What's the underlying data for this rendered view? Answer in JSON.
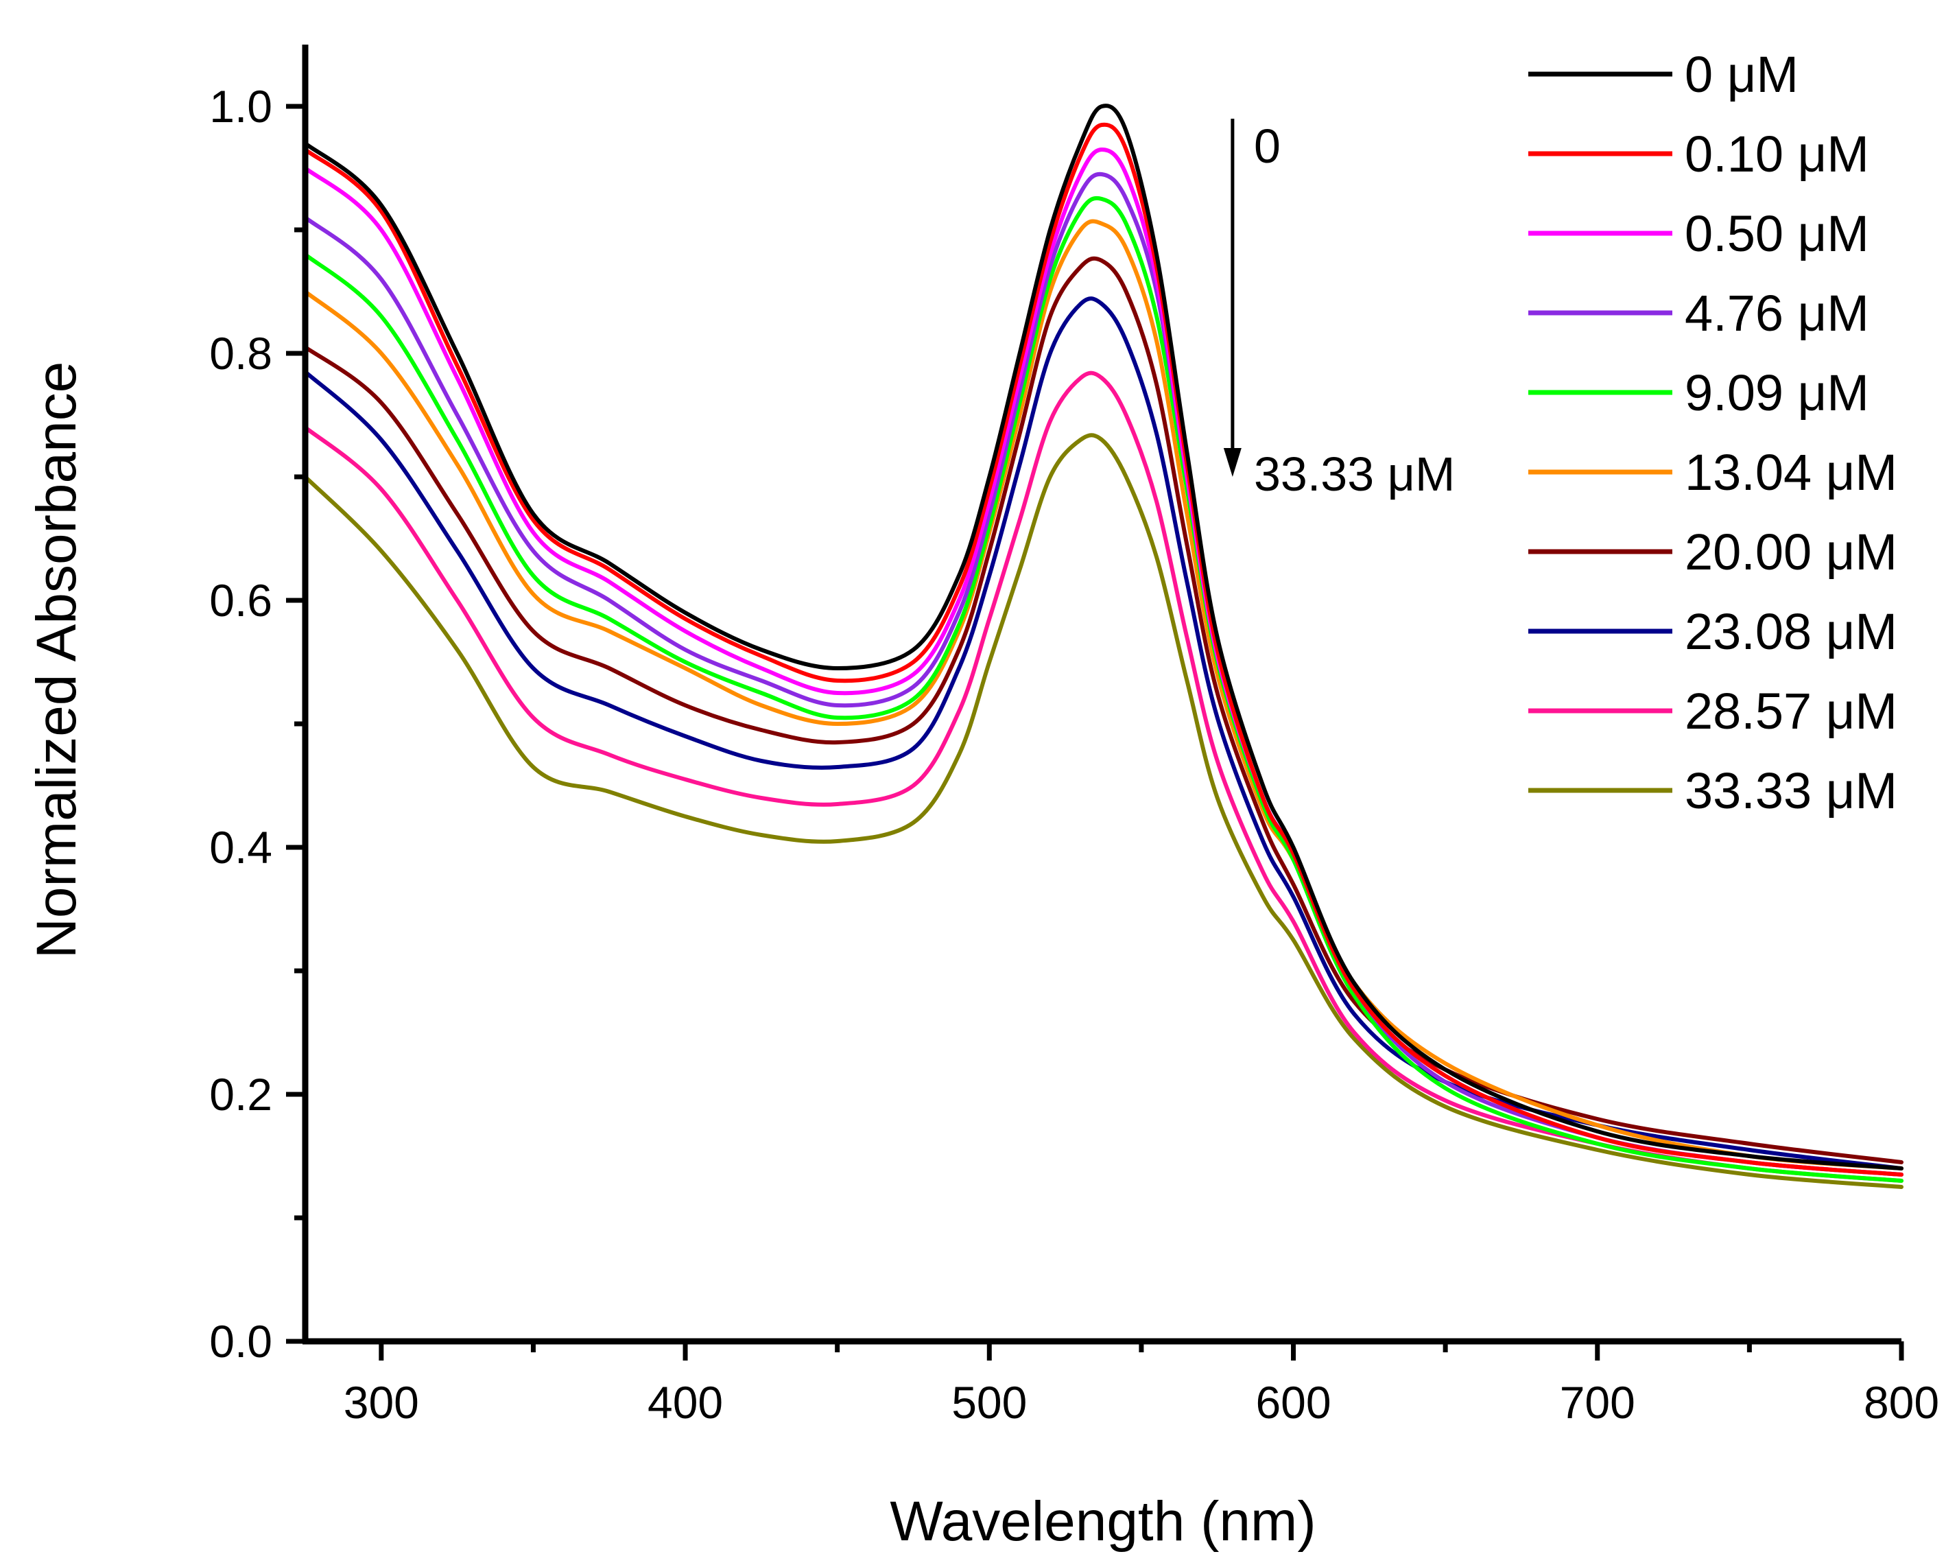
{
  "chart_data": {
    "type": "line",
    "title": "",
    "xlabel": "Wavelength (nm)",
    "ylabel": "Normalized Absorbance",
    "xlim": [
      275,
      800
    ],
    "ylim": [
      0,
      1.05
    ],
    "x_ticks": [
      300,
      400,
      500,
      600,
      700,
      800
    ],
    "y_ticks": [
      0.0,
      0.2,
      0.4,
      0.6,
      0.8,
      1.0
    ],
    "x_tick_labels": [
      "300",
      "400",
      "500",
      "600",
      "700",
      "800"
    ],
    "y_tick_labels": [
      "0.0",
      "0.2",
      "0.4",
      "0.6",
      "0.8",
      "1.0"
    ],
    "legend_position": "top-right",
    "annotation": {
      "start_label": "0",
      "end_label": "33.33 μM",
      "direction": "decreasing",
      "x": 580,
      "y_start": 0.99,
      "y_end": 0.7
    },
    "x": [
      275,
      300,
      325,
      350,
      375,
      400,
      425,
      450,
      475,
      490,
      500,
      510,
      520,
      530,
      537,
      545,
      555,
      565,
      575,
      590,
      600,
      620,
      650,
      700,
      750,
      800
    ],
    "series": [
      {
        "name": "0 μM",
        "color": "#000000",
        "values": [
          0.97,
          0.92,
          0.8,
          0.67,
          0.63,
          0.59,
          0.56,
          0.545,
          0.56,
          0.62,
          0.7,
          0.8,
          0.9,
          0.97,
          1.0,
          0.98,
          0.88,
          0.72,
          0.57,
          0.45,
          0.4,
          0.29,
          0.22,
          0.17,
          0.15,
          0.14
        ]
      },
      {
        "name": "0.10 μM",
        "color": "#ff0000",
        "values": [
          0.965,
          0.915,
          0.79,
          0.665,
          0.625,
          0.585,
          0.555,
          0.535,
          0.55,
          0.61,
          0.69,
          0.79,
          0.89,
          0.96,
          0.985,
          0.965,
          0.87,
          0.71,
          0.56,
          0.44,
          0.395,
          0.285,
          0.215,
          0.165,
          0.145,
          0.135
        ]
      },
      {
        "name": "0.50 μM",
        "color": "#ff00ff",
        "values": [
          0.95,
          0.9,
          0.78,
          0.655,
          0.615,
          0.575,
          0.545,
          0.525,
          0.54,
          0.6,
          0.68,
          0.78,
          0.88,
          0.945,
          0.965,
          0.945,
          0.86,
          0.7,
          0.555,
          0.44,
          0.395,
          0.285,
          0.215,
          0.165,
          0.145,
          0.135
        ]
      },
      {
        "name": "4.76 μM",
        "color": "#8a2be2",
        "values": [
          0.91,
          0.86,
          0.75,
          0.64,
          0.6,
          0.56,
          0.535,
          0.515,
          0.53,
          0.59,
          0.67,
          0.77,
          0.87,
          0.93,
          0.945,
          0.925,
          0.85,
          0.7,
          0.555,
          0.44,
          0.395,
          0.285,
          0.21,
          0.165,
          0.145,
          0.135
        ]
      },
      {
        "name": "9.09 μM",
        "color": "#00ff00",
        "values": [
          0.88,
          0.83,
          0.73,
          0.62,
          0.585,
          0.55,
          0.525,
          0.505,
          0.52,
          0.58,
          0.66,
          0.76,
          0.86,
          0.915,
          0.925,
          0.905,
          0.83,
          0.69,
          0.55,
          0.435,
          0.39,
          0.28,
          0.205,
          0.16,
          0.14,
          0.13
        ]
      },
      {
        "name": "13.04 μM",
        "color": "#ff8c00",
        "values": [
          0.85,
          0.8,
          0.71,
          0.605,
          0.575,
          0.545,
          0.515,
          0.5,
          0.515,
          0.575,
          0.655,
          0.75,
          0.85,
          0.9,
          0.905,
          0.885,
          0.81,
          0.67,
          0.54,
          0.43,
          0.39,
          0.29,
          0.225,
          0.175,
          0.15,
          0.14
        ]
      },
      {
        "name": "20.00 μM",
        "color": "#800000",
        "values": [
          0.805,
          0.76,
          0.67,
          0.575,
          0.545,
          0.515,
          0.495,
          0.485,
          0.5,
          0.56,
          0.64,
          0.735,
          0.83,
          0.87,
          0.875,
          0.85,
          0.775,
          0.645,
          0.525,
          0.42,
          0.37,
          0.275,
          0.22,
          0.18,
          0.16,
          0.145
        ]
      },
      {
        "name": "23.08 μM",
        "color": "#00008b",
        "values": [
          0.785,
          0.73,
          0.64,
          0.545,
          0.515,
          0.49,
          0.47,
          0.465,
          0.48,
          0.545,
          0.62,
          0.71,
          0.8,
          0.84,
          0.84,
          0.81,
          0.735,
          0.615,
          0.505,
          0.405,
          0.36,
          0.265,
          0.21,
          0.175,
          0.155,
          0.14
        ]
      },
      {
        "name": "28.57 μM",
        "color": "#ff1493",
        "values": [
          0.74,
          0.69,
          0.6,
          0.505,
          0.475,
          0.455,
          0.44,
          0.435,
          0.45,
          0.51,
          0.585,
          0.665,
          0.745,
          0.78,
          0.78,
          0.75,
          0.68,
          0.57,
          0.47,
          0.38,
          0.34,
          0.25,
          0.195,
          0.16,
          0.14,
          0.13
        ]
      },
      {
        "name": "33.33 μM",
        "color": "#808000",
        "values": [
          0.7,
          0.64,
          0.56,
          0.465,
          0.445,
          0.425,
          0.41,
          0.405,
          0.42,
          0.475,
          0.55,
          0.625,
          0.7,
          0.73,
          0.73,
          0.7,
          0.635,
          0.535,
          0.44,
          0.36,
          0.325,
          0.245,
          0.19,
          0.155,
          0.135,
          0.125
        ]
      }
    ]
  }
}
